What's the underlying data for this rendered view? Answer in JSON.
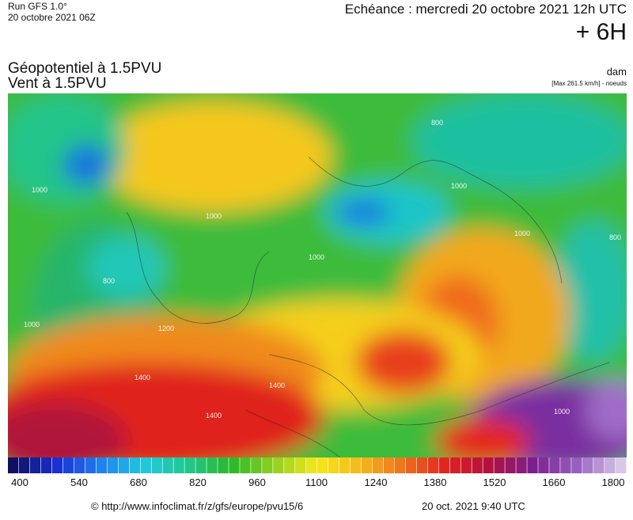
{
  "header": {
    "run": "Run GFS 1.0°",
    "run_date": "20 octobre 2021 06Z",
    "forecast": "Echéance : mercredi 20 octobre 2021 12h UTC",
    "lead": "+ 6H"
  },
  "map": {
    "title_line1": "Géopotentiel à 1.5PVU",
    "title_line2": "Vent à 1.5PVU",
    "unit": "dam",
    "wind_note": "[Max 261.5 km/h] - noeuds",
    "contour_labels": [
      "1000",
      "1000",
      "800",
      "1000",
      "1000",
      "800",
      "1000",
      "1400",
      "1400",
      "1200",
      "1000",
      "1400",
      "800",
      "1000"
    ]
  },
  "colorbar": {
    "ticks": [
      "400",
      "540",
      "680",
      "820",
      "960",
      "1100",
      "1240",
      "1380",
      "1520",
      "1660",
      "1800"
    ]
  },
  "footer": {
    "source": "© http://www.infoclimat.fr/z/gfs/europe/pvu15/6",
    "timestamp": "20 oct. 2021  9:40 UTC"
  }
}
